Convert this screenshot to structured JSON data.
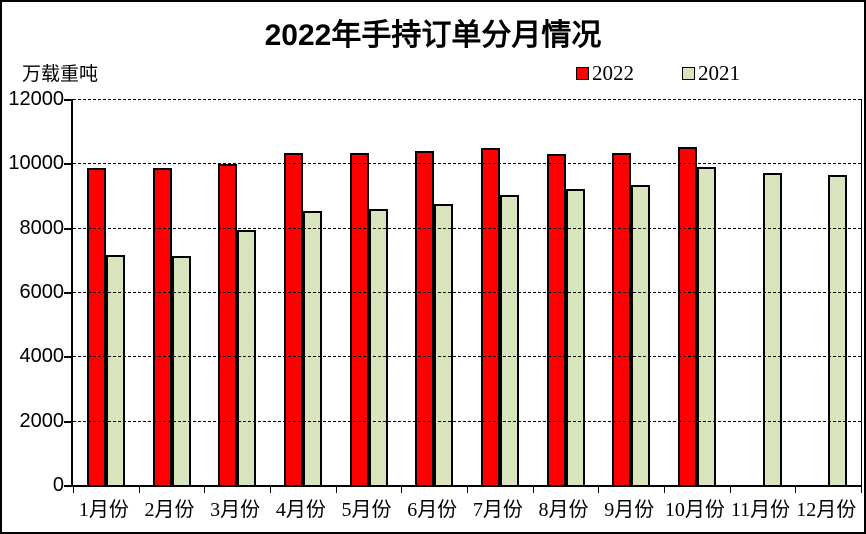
{
  "title": "2022年手持订单分月情况",
  "y_axis_title": "万载重吨",
  "legend": [
    {
      "label": "2022",
      "color": "#FF0000"
    },
    {
      "label": "2021",
      "color": "#D8E4BC"
    }
  ],
  "chart_data": {
    "type": "bar",
    "title": "2022年手持订单分月情况",
    "xlabel": "",
    "ylabel": "万载重吨",
    "categories": [
      "1月份",
      "2月份",
      "3月份",
      "4月份",
      "5月份",
      "6月份",
      "7月份",
      "8月份",
      "9月份",
      "10月份",
      "11月份",
      "12月份"
    ],
    "series": [
      {
        "name": "2022",
        "color": "#FF0000",
        "values": [
          9800,
          9780,
          9910,
          10250,
          10250,
          10310,
          10400,
          10240,
          10270,
          10450,
          null,
          null
        ]
      },
      {
        "name": "2021",
        "color": "#D8E4BC",
        "values": [
          7090,
          7060,
          7870,
          8460,
          8520,
          8670,
          8950,
          9150,
          9260,
          9830,
          9650,
          9580
        ]
      }
    ],
    "ylim": [
      0,
      12000
    ],
    "yticks": [
      0,
      2000,
      4000,
      6000,
      8000,
      10000,
      12000
    ],
    "grid": true,
    "gridline_style": "dashed",
    "legend_position": "top-right",
    "bar_border_color": "#000000",
    "background": "#FFFFFF"
  }
}
